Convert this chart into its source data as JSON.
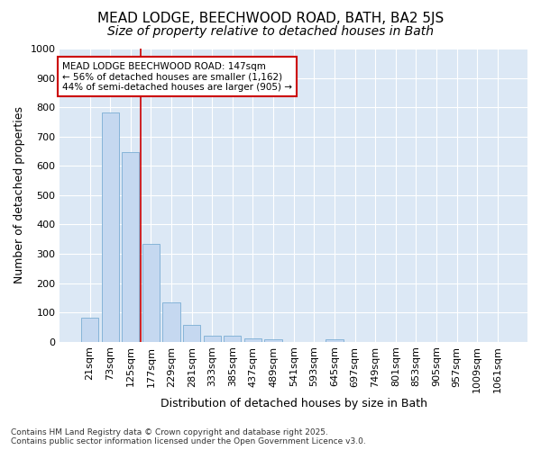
{
  "title_line1": "MEAD LODGE, BEECHWOOD ROAD, BATH, BA2 5JS",
  "title_line2": "Size of property relative to detached houses in Bath",
  "xlabel": "Distribution of detached houses by size in Bath",
  "ylabel": "Number of detached properties",
  "categories": [
    "21sqm",
    "73sqm",
    "125sqm",
    "177sqm",
    "229sqm",
    "281sqm",
    "333sqm",
    "385sqm",
    "437sqm",
    "489sqm",
    "541sqm",
    "593sqm",
    "645sqm",
    "697sqm",
    "749sqm",
    "801sqm",
    "853sqm",
    "905sqm",
    "957sqm",
    "1009sqm",
    "1061sqm"
  ],
  "values": [
    83,
    783,
    648,
    335,
    133,
    58,
    22,
    20,
    11,
    7,
    0,
    0,
    8,
    0,
    0,
    0,
    0,
    0,
    0,
    0,
    0
  ],
  "bar_color": "#c5d8f0",
  "bar_edgecolor": "#7aadd4",
  "highlight_color": "#cc0000",
  "property_bin_index": 2,
  "annotation_text": "MEAD LODGE BEECHWOOD ROAD: 147sqm\n← 56% of detached houses are smaller (1,162)\n44% of semi-detached houses are larger (905) →",
  "annotation_box_color": "#ffffff",
  "annotation_box_edgecolor": "#cc0000",
  "plot_bg_color": "#dce8f5",
  "figure_bg_color": "#ffffff",
  "grid_color": "#ffffff",
  "ylim": [
    0,
    1000
  ],
  "yticks": [
    0,
    100,
    200,
    300,
    400,
    500,
    600,
    700,
    800,
    900,
    1000
  ],
  "footnote": "Contains HM Land Registry data © Crown copyright and database right 2025.\nContains public sector information licensed under the Open Government Licence v3.0.",
  "title_fontsize": 11,
  "subtitle_fontsize": 10,
  "axis_label_fontsize": 9,
  "tick_fontsize": 8,
  "annotation_fontsize": 7.5,
  "footnote_fontsize": 6.5
}
